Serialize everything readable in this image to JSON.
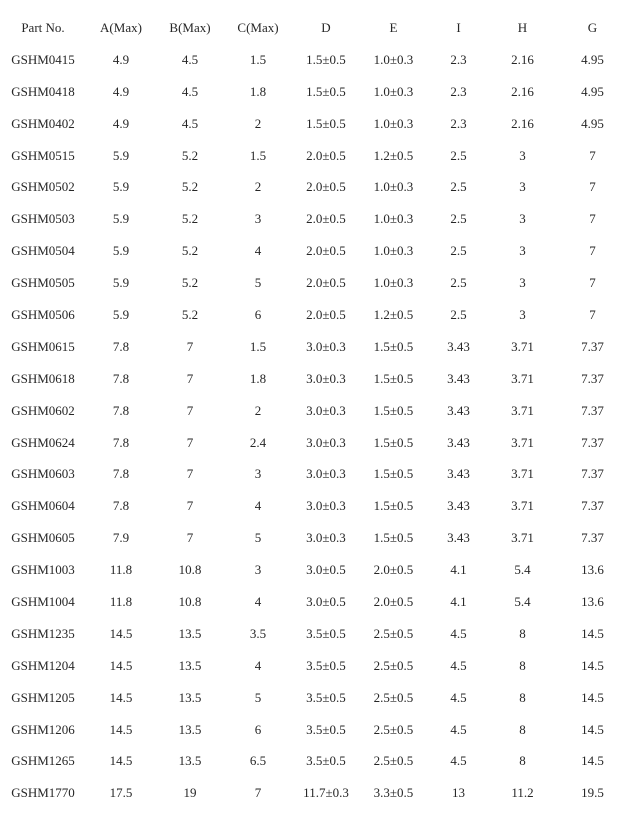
{
  "colors": {
    "background": "#ffffff",
    "text": "#262626"
  },
  "table": {
    "columns": [
      "Part No.",
      "A(Max)",
      "B(Max)",
      "C(Max)",
      "D",
      "E",
      "I",
      "H",
      "G"
    ],
    "rows": [
      [
        "GSHM0415",
        "4.9",
        "4.5",
        "1.5",
        "1.5±0.5",
        "1.0±0.3",
        "2.3",
        "2.16",
        "4.95"
      ],
      [
        "GSHM0418",
        "4.9",
        "4.5",
        "1.8",
        "1.5±0.5",
        "1.0±0.3",
        "2.3",
        "2.16",
        "4.95"
      ],
      [
        "GSHM0402",
        "4.9",
        "4.5",
        "2",
        "1.5±0.5",
        "1.0±0.3",
        "2.3",
        "2.16",
        "4.95"
      ],
      [
        "GSHM0515",
        "5.9",
        "5.2",
        "1.5",
        "2.0±0.5",
        "1.2±0.5",
        "2.5",
        "3",
        "7"
      ],
      [
        "GSHM0502",
        "5.9",
        "5.2",
        "2",
        "2.0±0.5",
        "1.0±0.3",
        "2.5",
        "3",
        "7"
      ],
      [
        "GSHM0503",
        "5.9",
        "5.2",
        "3",
        "2.0±0.5",
        "1.0±0.3",
        "2.5",
        "3",
        "7"
      ],
      [
        "GSHM0504",
        "5.9",
        "5.2",
        "4",
        "2.0±0.5",
        "1.0±0.3",
        "2.5",
        "3",
        "7"
      ],
      [
        "GSHM0505",
        "5.9",
        "5.2",
        "5",
        "2.0±0.5",
        "1.0±0.3",
        "2.5",
        "3",
        "7"
      ],
      [
        "GSHM0506",
        "5.9",
        "5.2",
        "6",
        "2.0±0.5",
        "1.2±0.5",
        "2.5",
        "3",
        "7"
      ],
      [
        "GSHM0615",
        "7.8",
        "7",
        "1.5",
        "3.0±0.3",
        "1.5±0.5",
        "3.43",
        "3.71",
        "7.37"
      ],
      [
        "GSHM0618",
        "7.8",
        "7",
        "1.8",
        "3.0±0.3",
        "1.5±0.5",
        "3.43",
        "3.71",
        "7.37"
      ],
      [
        "GSHM0602",
        "7.8",
        "7",
        "2",
        "3.0±0.3",
        "1.5±0.5",
        "3.43",
        "3.71",
        "7.37"
      ],
      [
        "GSHM0624",
        "7.8",
        "7",
        "2.4",
        "3.0±0.3",
        "1.5±0.5",
        "3.43",
        "3.71",
        "7.37"
      ],
      [
        "GSHM0603",
        "7.8",
        "7",
        "3",
        "3.0±0.3",
        "1.5±0.5",
        "3.43",
        "3.71",
        "7.37"
      ],
      [
        "GSHM0604",
        "7.8",
        "7",
        "4",
        "3.0±0.3",
        "1.5±0.5",
        "3.43",
        "3.71",
        "7.37"
      ],
      [
        "GSHM0605",
        "7.9",
        "7",
        "5",
        "3.0±0.3",
        "1.5±0.5",
        "3.43",
        "3.71",
        "7.37"
      ],
      [
        "GSHM1003",
        "11.8",
        "10.8",
        "3",
        "3.0±0.5",
        "2.0±0.5",
        "4.1",
        "5.4",
        "13.6"
      ],
      [
        "GSHM1004",
        "11.8",
        "10.8",
        "4",
        "3.0±0.5",
        "2.0±0.5",
        "4.1",
        "5.4",
        "13.6"
      ],
      [
        "GSHM1235",
        "14.5",
        "13.5",
        "3.5",
        "3.5±0.5",
        "2.5±0.5",
        "4.5",
        "8",
        "14.5"
      ],
      [
        "GSHM1204",
        "14.5",
        "13.5",
        "4",
        "3.5±0.5",
        "2.5±0.5",
        "4.5",
        "8",
        "14.5"
      ],
      [
        "GSHM1205",
        "14.5",
        "13.5",
        "5",
        "3.5±0.5",
        "2.5±0.5",
        "4.5",
        "8",
        "14.5"
      ],
      [
        "GSHM1206",
        "14.5",
        "13.5",
        "6",
        "3.5±0.5",
        "2.5±0.5",
        "4.5",
        "8",
        "14.5"
      ],
      [
        "GSHM1265",
        "14.5",
        "13.5",
        "6.5",
        "3.5±0.5",
        "2.5±0.5",
        "4.5",
        "8",
        "14.5"
      ],
      [
        "GSHM1770",
        "17.5",
        "19",
        "7",
        "11.7±0.3",
        "3.3±0.5",
        "13",
        "11.2",
        "19.5"
      ]
    ]
  }
}
